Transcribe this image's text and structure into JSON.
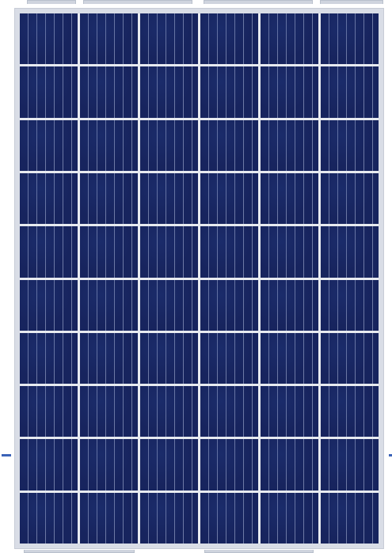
{
  "image": {
    "subject": "solar panel"
  },
  "colors": {
    "frame": "#d9dde6",
    "cell": "#17245e",
    "grid_line": "#e7eaf0",
    "accent": "#3b63b8"
  },
  "layout": {
    "rows": 10,
    "cols": 6
  }
}
